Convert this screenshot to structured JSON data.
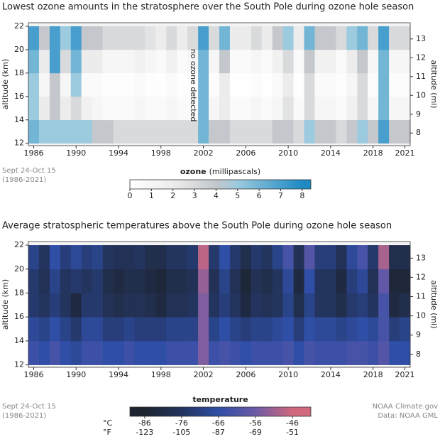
{
  "chart_data": [
    {
      "type": "heatmap",
      "title": "Lowest ozone amounts in the stratosphere over the South Pole during ozone hole season",
      "x": [
        1986,
        1987,
        1988,
        1989,
        1990,
        1991,
        1992,
        1993,
        1994,
        1995,
        1996,
        1997,
        1998,
        1999,
        2000,
        2001,
        2002,
        2003,
        2004,
        2005,
        2006,
        2007,
        2008,
        2009,
        2010,
        2011,
        2012,
        2013,
        2014,
        2015,
        2016,
        2017,
        2018,
        2019,
        2020,
        2021
      ],
      "xlim": [
        1985.5,
        2021.5
      ],
      "xticks": [
        1986,
        1990,
        1994,
        1998,
        2002,
        2006,
        2010,
        2014,
        2018,
        2021
      ],
      "ybins": [
        12,
        14,
        16,
        18,
        20,
        22
      ],
      "ylim": [
        11.8,
        22.3
      ],
      "yticks": [
        12,
        14,
        16,
        18,
        20,
        22
      ],
      "ylabel": "altitude (km)",
      "y2lim": [
        7.33,
        13.86
      ],
      "y2ticks": [
        8,
        9,
        10,
        11,
        12,
        13
      ],
      "y2label": "altitude (mi)",
      "values": [
        [
          6,
          5,
          5,
          5,
          5,
          5,
          4,
          4,
          3,
          3,
          3,
          3,
          3,
          3,
          3,
          3,
          6,
          4,
          4,
          3,
          3,
          3,
          3,
          4,
          4,
          3,
          5,
          4,
          4,
          3,
          4,
          5,
          4,
          7,
          4,
          4
        ],
        [
          5,
          2,
          4,
          2,
          3,
          1.5,
          1,
          0.5,
          0.5,
          0.5,
          1,
          0.5,
          0.5,
          1,
          0.5,
          0.5,
          6,
          1,
          2,
          0.5,
          0.5,
          1,
          0.5,
          1,
          2.5,
          0.5,
          3,
          1,
          1,
          0.5,
          1.5,
          3,
          1,
          6,
          1,
          1
        ],
        [
          5,
          1,
          4,
          1,
          5,
          0.5,
          0.5,
          0.2,
          0.2,
          0.2,
          0.5,
          0.2,
          0.1,
          0.5,
          0.1,
          0.2,
          6,
          0.3,
          2,
          0.1,
          0.1,
          0.3,
          0.1,
          0.5,
          2,
          0.1,
          3,
          0.5,
          0.5,
          0.2,
          1,
          3,
          0.3,
          6,
          0.3,
          0.3
        ],
        [
          6,
          2,
          7,
          3,
          6,
          2,
          2,
          1,
          1,
          1,
          1.5,
          1,
          0.5,
          1.5,
          0.5,
          1,
          6,
          1,
          4,
          0.5,
          0.5,
          1,
          0.5,
          1.5,
          3,
          0.5,
          4,
          1.5,
          1.5,
          0.5,
          2,
          4,
          1,
          6,
          1,
          1
        ],
        [
          7,
          4,
          7,
          5,
          7,
          4,
          4,
          3,
          3,
          3,
          3,
          2.5,
          2,
          3,
          2,
          3,
          7,
          3,
          6,
          2,
          2,
          3,
          2,
          4,
          5,
          2,
          6,
          4,
          4,
          3,
          5,
          6,
          3,
          7,
          3,
          3
        ]
      ],
      "colorscale": [
        [
          0,
          "#ffffff"
        ],
        [
          2,
          "#ececec"
        ],
        [
          4,
          "#c4c8cc"
        ],
        [
          5,
          "#9ccade"
        ],
        [
          8,
          "#1e8ac4"
        ]
      ],
      "annotation": "no ozone detected",
      "colorbar": {
        "title": "ozone",
        "subtitle": "(millipascals)",
        "lim": [
          0,
          8.4
        ],
        "ticks": [
          0,
          1,
          2,
          3,
          4,
          5,
          6,
          7,
          8
        ]
      },
      "notes": [
        "Sept 24-Oct 15",
        "(1986-2021)"
      ]
    },
    {
      "type": "heatmap",
      "title": "Average stratospheric temperatures above the South Pole during ozone hole season",
      "x": [
        1986,
        1987,
        1988,
        1989,
        1990,
        1991,
        1992,
        1993,
        1994,
        1995,
        1996,
        1997,
        1998,
        1999,
        2000,
        2001,
        2002,
        2003,
        2004,
        2005,
        2006,
        2007,
        2008,
        2009,
        2010,
        2011,
        2012,
        2013,
        2014,
        2015,
        2016,
        2017,
        2018,
        2019,
        2020,
        2021
      ],
      "xlim": [
        1985.5,
        2021.5
      ],
      "xticks": [
        1986,
        1990,
        1994,
        1998,
        2002,
        2006,
        2010,
        2014,
        2018,
        2021
      ],
      "ybins": [
        12,
        14,
        16,
        18,
        20,
        22
      ],
      "ylim": [
        11.8,
        22.3
      ],
      "yticks": [
        12,
        14,
        16,
        18,
        20,
        22
      ],
      "ylabel": "altitude (km)",
      "y2lim": [
        7.33,
        13.86
      ],
      "y2ticks": [
        8,
        9,
        10,
        11,
        12,
        13
      ],
      "y2label": "altitude (mi)",
      "values": [
        [
          -64,
          -66,
          -62,
          -66,
          -68,
          -64,
          -64,
          -66,
          -66,
          -64,
          -66,
          -66,
          -66,
          -64,
          -64,
          -64,
          -54,
          -64,
          -62,
          -64,
          -66,
          -64,
          -64,
          -64,
          -62,
          -66,
          -62,
          -64,
          -64,
          -64,
          -62,
          -62,
          -64,
          -60,
          -66,
          -66
        ],
        [
          -68,
          -70,
          -66,
          -70,
          -74,
          -68,
          -68,
          -72,
          -72,
          -70,
          -72,
          -72,
          -72,
          -70,
          -70,
          -70,
          -54,
          -70,
          -66,
          -70,
          -72,
          -70,
          -70,
          -68,
          -66,
          -72,
          -66,
          -68,
          -68,
          -70,
          -68,
          -66,
          -68,
          -62,
          -72,
          -70
        ],
        [
          -74,
          -76,
          -72,
          -76,
          -82,
          -74,
          -74,
          -78,
          -80,
          -78,
          -78,
          -80,
          -82,
          -78,
          -78,
          -76,
          -54,
          -76,
          -72,
          -76,
          -82,
          -76,
          -78,
          -76,
          -70,
          -80,
          -70,
          -76,
          -76,
          -80,
          -74,
          -72,
          -76,
          -62,
          -82,
          -80
        ],
        [
          -74,
          -78,
          -70,
          -76,
          -74,
          -76,
          -74,
          -80,
          -82,
          -80,
          -80,
          -82,
          -84,
          -80,
          -80,
          -78,
          -52,
          -78,
          -70,
          -78,
          -84,
          -78,
          -80,
          -76,
          -68,
          -82,
          -66,
          -76,
          -76,
          -82,
          -72,
          -68,
          -78,
          -58,
          -84,
          -84
        ],
        [
          -70,
          -76,
          -66,
          -72,
          -68,
          -72,
          -70,
          -76,
          -78,
          -78,
          -76,
          -80,
          -80,
          -76,
          -76,
          -74,
          -48,
          -74,
          -66,
          -74,
          -80,
          -74,
          -76,
          -70,
          -62,
          -78,
          -60,
          -72,
          -72,
          -78,
          -68,
          -62,
          -74,
          -50,
          -80,
          -80
        ]
      ],
      "colorscale": [
        [
          -86,
          "#1d2430"
        ],
        [
          -76,
          "#23345e"
        ],
        [
          -66,
          "#2f4ea6"
        ],
        [
          -56,
          "#6c5aa6"
        ],
        [
          -46,
          "#d0687e"
        ]
      ],
      "colorbar": {
        "title": "temperature",
        "lim": [
          -90,
          -41
        ],
        "unit": "°C",
        "ticks": [
          -86,
          -76,
          -66,
          -56,
          -46
        ],
        "unit2": "°F",
        "ticks2": [
          {
            "value": -86,
            "label": "-123"
          },
          {
            "value": -76,
            "label": "-105"
          },
          {
            "value": -66,
            "label": "-87"
          },
          {
            "value": -56,
            "label": "-69"
          },
          {
            "value": -46,
            "label": "-51"
          }
        ]
      },
      "notes": [
        "Sept 24-Oct 15",
        "(1986-2021)"
      ],
      "credits": [
        "NOAA Climate.gov",
        "Data: NOAA GML"
      ]
    }
  ]
}
